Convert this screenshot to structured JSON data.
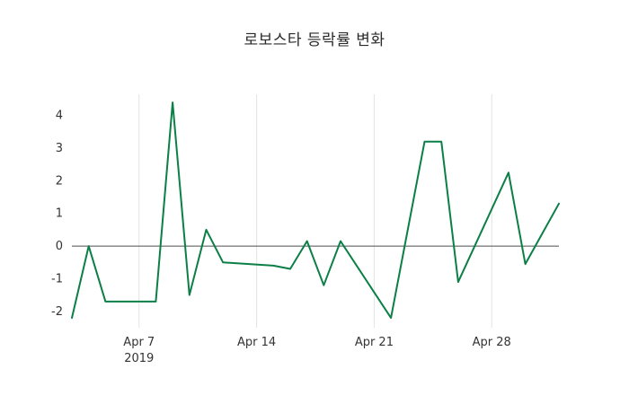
{
  "chart_data": {
    "type": "line",
    "title": "로보스타 등락률 변화",
    "x": [
      "2019-04-03",
      "2019-04-04",
      "2019-04-05",
      "2019-04-08",
      "2019-04-09",
      "2019-04-10",
      "2019-04-11",
      "2019-04-12",
      "2019-04-15",
      "2019-04-16",
      "2019-04-17",
      "2019-04-18",
      "2019-04-19",
      "2019-04-22",
      "2019-04-24",
      "2019-04-25",
      "2019-04-26",
      "2019-04-29",
      "2019-04-30",
      "2019-05-02"
    ],
    "values": [
      -2.2,
      0.0,
      -1.7,
      -1.7,
      4.4,
      -1.5,
      0.5,
      -0.5,
      -0.6,
      -0.7,
      0.15,
      -1.2,
      0.15,
      -2.2,
      3.2,
      3.2,
      -1.1,
      2.25,
      -0.55,
      1.3
    ],
    "x_range": [
      "2019-04-03",
      "2019-05-02"
    ],
    "ylim": [
      -2.5,
      4.65
    ],
    "yticks": [
      -2,
      -1,
      0,
      1,
      2,
      3,
      4
    ],
    "xticks": [
      {
        "date": "2019-04-07",
        "label": "Apr 7"
      },
      {
        "date": "2019-04-14",
        "label": "Apr 14"
      },
      {
        "date": "2019-04-21",
        "label": "Apr 21"
      },
      {
        "date": "2019-04-28",
        "label": "Apr 28"
      }
    ],
    "year_label": "2019",
    "grid": "vertical-only",
    "legend": "none",
    "colors": {
      "line": "#0c7f47",
      "grid": "#e3e3e3",
      "zero_line": "#4d4d4d",
      "tick_text": "#333333"
    }
  }
}
